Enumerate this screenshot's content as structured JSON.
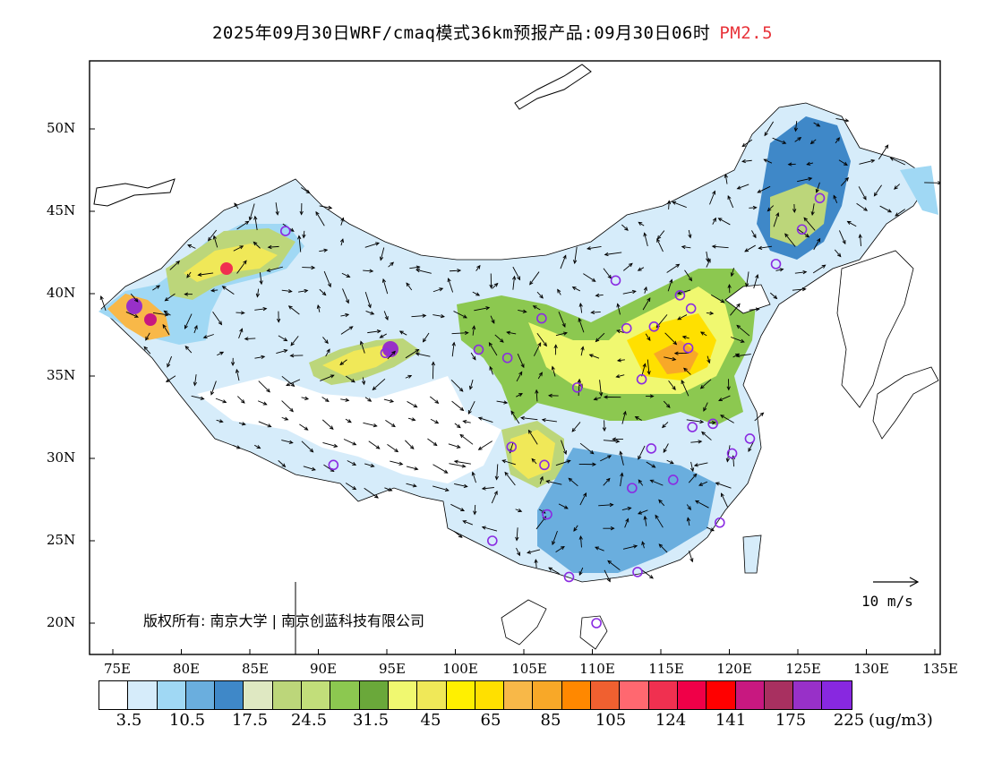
{
  "title": {
    "main": "2025年09月30日WRF/cmaq模式36km预报产品:09月30日06时",
    "species": "PM2.5",
    "species_color": "#e8333a"
  },
  "axes": {
    "lat_labels": [
      "50N",
      "45N",
      "40N",
      "35N",
      "30N",
      "25N",
      "20N"
    ],
    "lat_values": [
      50,
      45,
      40,
      35,
      30,
      25,
      20
    ],
    "lon_labels": [
      "75E",
      "80E",
      "85E",
      "90E",
      "95E",
      "100E",
      "105E",
      "110E",
      "115E",
      "120E",
      "125E",
      "130E",
      "135E"
    ],
    "lon_values": [
      75,
      80,
      85,
      90,
      95,
      100,
      105,
      110,
      115,
      120,
      125,
      130,
      135
    ],
    "lat_range": [
      18,
      54
    ],
    "lon_range": [
      73,
      135
    ]
  },
  "copyright": "版权所有: 南京大学 | 南京创蓝科技有限公司",
  "wind_reference": "10 m/s",
  "colorbar": {
    "colors": [
      "#ffffff",
      "#d6ecfa",
      "#a0d8f4",
      "#6aaede",
      "#3f88c8",
      "#dfe8c2",
      "#bcd67a",
      "#c2de7a",
      "#8cc850",
      "#6aa83a",
      "#f0f870",
      "#f0e858",
      "#fff000",
      "#ffe000",
      "#f8b848",
      "#f8a828",
      "#ff8800",
      "#f06030",
      "#ff6870",
      "#f03050",
      "#f00048",
      "#ff0000",
      "#c81880",
      "#a83060",
      "#9830c8",
      "#8828e0"
    ],
    "labels": [
      "3.5",
      "10.5",
      "17.5",
      "24.5",
      "31.5",
      "45",
      "65",
      "85",
      "105",
      "124",
      "141",
      "175",
      "225"
    ],
    "units": "(ug/m3)"
  },
  "stations": [
    {
      "lon": 87.6,
      "lat": 43.8
    },
    {
      "lon": 91.1,
      "lat": 29.6
    },
    {
      "lon": 94.9,
      "lat": 36.4
    },
    {
      "lon": 101.7,
      "lat": 36.6
    },
    {
      "lon": 103.8,
      "lat": 36.1
    },
    {
      "lon": 106.3,
      "lat": 38.5
    },
    {
      "lon": 111.7,
      "lat": 40.8
    },
    {
      "lon": 112.5,
      "lat": 37.9
    },
    {
      "lon": 114.5,
      "lat": 38.0
    },
    {
      "lon": 116.4,
      "lat": 39.9
    },
    {
      "lon": 117.2,
      "lat": 39.1
    },
    {
      "lon": 117.0,
      "lat": 36.7
    },
    {
      "lon": 113.6,
      "lat": 34.8
    },
    {
      "lon": 108.9,
      "lat": 34.3
    },
    {
      "lon": 104.1,
      "lat": 30.7
    },
    {
      "lon": 106.5,
      "lat": 29.6
    },
    {
      "lon": 106.7,
      "lat": 26.6
    },
    {
      "lon": 102.7,
      "lat": 25.0
    },
    {
      "lon": 108.3,
      "lat": 22.8
    },
    {
      "lon": 113.3,
      "lat": 23.1
    },
    {
      "lon": 110.3,
      "lat": 20.0
    },
    {
      "lon": 112.9,
      "lat": 28.2
    },
    {
      "lon": 114.3,
      "lat": 30.6
    },
    {
      "lon": 115.9,
      "lat": 28.7
    },
    {
      "lon": 117.3,
      "lat": 31.9
    },
    {
      "lon": 118.8,
      "lat": 32.1
    },
    {
      "lon": 120.2,
      "lat": 30.3
    },
    {
      "lon": 121.5,
      "lat": 31.2
    },
    {
      "lon": 119.3,
      "lat": 26.1
    },
    {
      "lon": 123.4,
      "lat": 41.8
    },
    {
      "lon": 125.3,
      "lat": 43.9
    },
    {
      "lon": 126.6,
      "lat": 45.8
    }
  ]
}
